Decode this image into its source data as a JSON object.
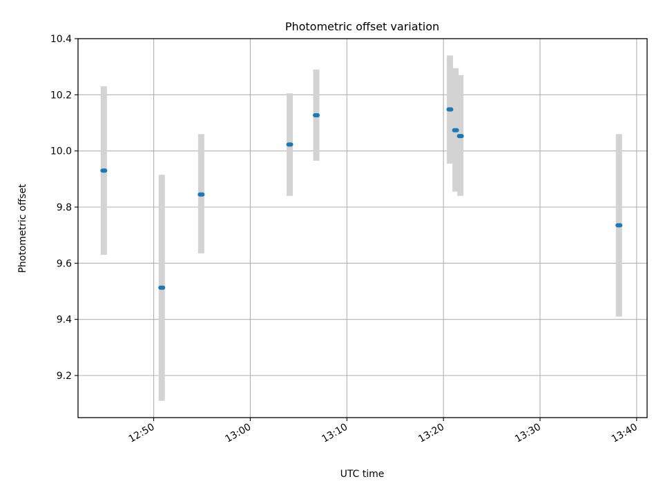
{
  "chart_data": {
    "type": "scatter",
    "title": "Photometric offset variation",
    "xlabel": "UTC time",
    "ylabel": "Photometric offset",
    "x_ticks": [
      "12:50",
      "13:00",
      "13:10",
      "13:20",
      "13:30",
      "13:40"
    ],
    "y_ticks": [
      "9.2",
      "9.4",
      "9.6",
      "9.8",
      "10.0",
      "10.2",
      "10.4"
    ],
    "xlim": [
      "12:42:10",
      "13:41:05"
    ],
    "ylim": [
      9.05,
      10.4
    ],
    "grid": true,
    "errorbar_color": "#d3d3d3",
    "marker_color": "#1f77b4",
    "series": [
      {
        "points": [
          {
            "t": "12:44:50",
            "y": 9.93,
            "yerr_low": 9.63,
            "yerr_high": 10.23
          },
          {
            "t": "12:50:50",
            "y": 9.513,
            "yerr_low": 9.11,
            "yerr_high": 9.915
          },
          {
            "t": "12:54:55",
            "y": 9.845,
            "yerr_low": 9.635,
            "yerr_high": 10.06
          },
          {
            "t": "13:04:05",
            "y": 10.023,
            "yerr_low": 9.84,
            "yerr_high": 10.205
          },
          {
            "t": "13:06:50",
            "y": 10.127,
            "yerr_low": 9.965,
            "yerr_high": 10.29
          },
          {
            "t": "13:20:40",
            "y": 10.148,
            "yerr_low": 9.955,
            "yerr_high": 10.34
          },
          {
            "t": "13:21:15",
            "y": 10.074,
            "yerr_low": 9.855,
            "yerr_high": 10.295
          },
          {
            "t": "13:21:45",
            "y": 10.053,
            "yerr_low": 9.84,
            "yerr_high": 10.27
          },
          {
            "t": "13:38:10",
            "y": 9.735,
            "yerr_low": 9.41,
            "yerr_high": 10.06
          }
        ]
      }
    ]
  }
}
